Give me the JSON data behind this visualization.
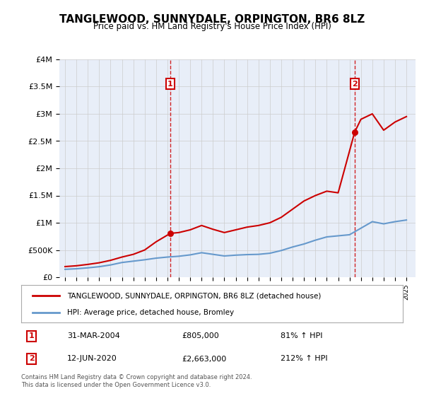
{
  "title": "TANGLEWOOD, SUNNYDALE, ORPINGTON, BR6 8LZ",
  "subtitle": "Price paid vs. HM Land Registry's House Price Index (HPI)",
  "red_line_label": "TANGLEWOOD, SUNNYDALE, ORPINGTON, BR6 8LZ (detached house)",
  "blue_line_label": "HPI: Average price, detached house, Bromley",
  "annotation1_label": "1",
  "annotation1_date": "31-MAR-2004",
  "annotation1_price": "£805,000",
  "annotation1_hpi": "81% ↑ HPI",
  "annotation1_year": 2004.25,
  "annotation1_value": 805000,
  "annotation2_label": "2",
  "annotation2_date": "12-JUN-2020",
  "annotation2_price": "£2,663,000",
  "annotation2_hpi": "212% ↑ HPI",
  "annotation2_year": 2020.45,
  "annotation2_value": 2663000,
  "red_color": "#cc0000",
  "blue_color": "#6699cc",
  "dashed_color": "#cc0000",
  "background_color": "#e8eef8",
  "plot_bg": "#e8eef8",
  "legend_bg": "#ffffff",
  "box_color": "#cc0000",
  "footer": "Contains HM Land Registry data © Crown copyright and database right 2024.\nThis data is licensed under the Open Government Licence v3.0.",
  "ylim": [
    0,
    4000000
  ],
  "yticks": [
    0,
    500000,
    1000000,
    1500000,
    2000000,
    2500000,
    3000000,
    3500000,
    4000000
  ],
  "ytick_labels": [
    "£0",
    "£500K",
    "£1M",
    "£1.5M",
    "£2M",
    "£2.5M",
    "£3M",
    "£3.5M",
    "£4M"
  ],
  "red_years": [
    1995,
    1996,
    1997,
    1998,
    1999,
    2000,
    2001,
    2002,
    2003,
    2004.25,
    2005,
    2006,
    2007,
    2008,
    2009,
    2010,
    2011,
    2012,
    2013,
    2014,
    2015,
    2016,
    2017,
    2018,
    2019,
    2020.45,
    2021,
    2022,
    2023,
    2024,
    2025
  ],
  "red_values": [
    195000,
    210000,
    235000,
    265000,
    310000,
    370000,
    420000,
    500000,
    650000,
    805000,
    820000,
    870000,
    950000,
    880000,
    820000,
    870000,
    920000,
    950000,
    1000000,
    1100000,
    1250000,
    1400000,
    1500000,
    1580000,
    1550000,
    2663000,
    2900000,
    3000000,
    2700000,
    2850000,
    2950000
  ],
  "blue_years": [
    1995,
    1996,
    1997,
    1998,
    1999,
    2000,
    2001,
    2002,
    2003,
    2004,
    2005,
    2006,
    2007,
    2008,
    2009,
    2010,
    2011,
    2012,
    2013,
    2014,
    2015,
    2016,
    2017,
    2018,
    2019,
    2020,
    2021,
    2022,
    2023,
    2024,
    2025
  ],
  "blue_values": [
    145000,
    155000,
    172000,
    193000,
    225000,
    270000,
    295000,
    320000,
    350000,
    370000,
    385000,
    410000,
    450000,
    420000,
    390000,
    405000,
    415000,
    420000,
    440000,
    490000,
    555000,
    610000,
    680000,
    740000,
    760000,
    780000,
    900000,
    1020000,
    980000,
    1020000,
    1050000
  ]
}
